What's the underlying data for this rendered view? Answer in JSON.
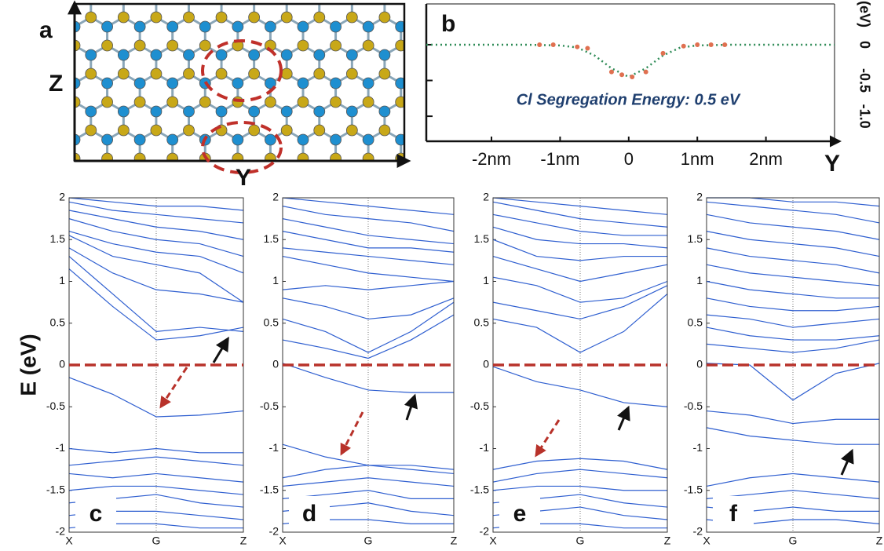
{
  "chart_data": [
    {
      "type": "structure",
      "label": "a",
      "ylabel": "Z",
      "xlabel": "Y"
    },
    {
      "type": "line",
      "label": "b",
      "annotation": "Cl Segregation Energy: 0.5 eV",
      "ylabel": "(eV)",
      "xlabel": "Y",
      "xlim": [
        -2.95,
        3
      ],
      "ylim": [
        -1.35,
        0.57
      ],
      "xticks": [
        {
          "value": -2,
          "label": "-2nm"
        },
        {
          "value": -1,
          "label": "-1nm"
        },
        0,
        {
          "value": 1,
          "label": "1nm"
        },
        {
          "value": 2,
          "label": "2nm"
        }
      ],
      "yticks": [
        0,
        -0.5,
        {
          "value": -1,
          "label": "-1.0"
        }
      ],
      "series": [
        {
          "style": "dotted",
          "color": "#2e8b57",
          "x": [
            -2.95,
            -2.5,
            -2,
            -1.5,
            -1,
            -0.75,
            -0.5,
            -0.25,
            0,
            0.25,
            0.5,
            0.75,
            1,
            1.5,
            2,
            2.5,
            3
          ],
          "values": [
            0,
            0,
            0,
            0,
            -0.01,
            -0.04,
            -0.15,
            -0.33,
            -0.45,
            -0.33,
            -0.15,
            -0.04,
            -0.01,
            0,
            0,
            0,
            0
          ]
        },
        {
          "style": "points",
          "color": "#e07050",
          "x": [
            -1.3,
            -1.1,
            -0.75,
            -0.6,
            -0.25,
            -0.1,
            0.05,
            0.25,
            0.5,
            0.8,
            1.0,
            1.2,
            1.4
          ],
          "values": [
            0,
            0,
            -0.03,
            -0.05,
            -0.38,
            -0.42,
            -0.45,
            -0.38,
            -0.12,
            -0.02,
            0,
            0,
            0
          ]
        }
      ]
    },
    {
      "type": "band",
      "label": "c",
      "ylabel": "E (eV)",
      "color": "#2f5fd0",
      "hline": 0,
      "hline_color": "#b8322a",
      "x": [
        0,
        0.5,
        1,
        1.5,
        2
      ],
      "xlim": [
        0,
        2
      ],
      "ylim": [
        -2,
        2
      ],
      "xticks": [
        {
          "value": 0,
          "label": "X"
        },
        {
          "value": 1,
          "label": "G"
        },
        {
          "value": 2,
          "label": "Z"
        }
      ],
      "yticks": [
        2,
        1.5,
        1,
        0.5,
        0,
        -0.5,
        -1,
        -1.5,
        -2
      ],
      "series": [
        {
          "values": [
            1.15,
            0.7,
            0.3,
            0.35,
            0.45
          ]
        },
        {
          "values": [
            1.3,
            0.85,
            0.4,
            0.45,
            0.4
          ]
        },
        {
          "values": [
            1.4,
            1.1,
            0.9,
            0.85,
            0.75
          ]
        },
        {
          "values": [
            1.55,
            1.3,
            1.2,
            1.1,
            0.75
          ]
        },
        {
          "values": [
            1.6,
            1.45,
            1.35,
            1.3,
            1.1
          ]
        },
        {
          "values": [
            1.75,
            1.6,
            1.5,
            1.45,
            1.3
          ]
        },
        {
          "values": [
            1.85,
            1.75,
            1.65,
            1.6,
            1.5
          ]
        },
        {
          "values": [
            1.95,
            1.85,
            1.8,
            1.75,
            1.7
          ]
        },
        {
          "values": [
            2.0,
            1.95,
            1.9,
            1.9,
            1.85
          ]
        },
        {
          "values": [
            -0.15,
            -0.35,
            -0.62,
            -0.6,
            -0.55
          ]
        },
        {
          "values": [
            -1.0,
            -1.05,
            -1.0,
            -1.05,
            -1.05
          ]
        },
        {
          "values": [
            -1.2,
            -1.15,
            -1.1,
            -1.15,
            -1.2
          ]
        },
        {
          "values": [
            -1.3,
            -1.35,
            -1.3,
            -1.35,
            -1.4
          ]
        },
        {
          "values": [
            -1.5,
            -1.45,
            -1.45,
            -1.5,
            -1.55
          ]
        },
        {
          "values": [
            -1.65,
            -1.6,
            -1.55,
            -1.65,
            -1.7
          ]
        },
        {
          "values": [
            -1.8,
            -1.75,
            -1.75,
            -1.8,
            -1.85
          ]
        },
        {
          "values": [
            -1.95,
            -1.9,
            -1.9,
            -1.95,
            -1.95
          ]
        }
      ]
    },
    {
      "type": "band",
      "label": "d",
      "color": "#2f5fd0",
      "hline": 0,
      "hline_color": "#b8322a",
      "x": [
        0,
        0.5,
        1,
        1.5,
        2
      ],
      "xlim": [
        0,
        2
      ],
      "ylim": [
        -2,
        2
      ],
      "xticks": [
        {
          "value": 0,
          "label": "X"
        },
        {
          "value": 1,
          "label": "G"
        },
        {
          "value": 2,
          "label": "Z"
        }
      ],
      "yticks": [
        2,
        1.5,
        1,
        0.5,
        0,
        -0.5,
        -1,
        -1.5,
        -2
      ],
      "series": [
        {
          "values": [
            0.3,
            0.2,
            0.08,
            0.3,
            0.6
          ]
        },
        {
          "values": [
            0.55,
            0.4,
            0.15,
            0.4,
            0.75
          ]
        },
        {
          "values": [
            0.8,
            0.7,
            0.55,
            0.6,
            0.8
          ]
        },
        {
          "values": [
            0.9,
            0.95,
            0.9,
            0.95,
            1.0
          ]
        },
        {
          "values": [
            1.3,
            1.2,
            1.1,
            1.05,
            1.0
          ]
        },
        {
          "values": [
            1.4,
            1.35,
            1.3,
            1.25,
            1.2
          ]
        },
        {
          "values": [
            1.6,
            1.5,
            1.4,
            1.4,
            1.35
          ]
        },
        {
          "values": [
            1.75,
            1.65,
            1.55,
            1.5,
            1.45
          ]
        },
        {
          "values": [
            1.9,
            1.8,
            1.75,
            1.7,
            1.6
          ]
        },
        {
          "values": [
            2.0,
            1.95,
            1.9,
            1.85,
            1.8
          ]
        },
        {
          "values": [
            0.02,
            -0.15,
            -0.3,
            -0.33,
            -0.33
          ]
        },
        {
          "values": [
            -0.95,
            -1.1,
            -1.2,
            -1.2,
            -1.25
          ]
        },
        {
          "values": [
            -1.35,
            -1.25,
            -1.2,
            -1.25,
            -1.3
          ]
        },
        {
          "values": [
            -1.45,
            -1.4,
            -1.35,
            -1.4,
            -1.45
          ]
        },
        {
          "values": [
            -1.6,
            -1.55,
            -1.5,
            -1.6,
            -1.6
          ]
        },
        {
          "values": [
            -1.75,
            -1.7,
            -1.65,
            -1.75,
            -1.8
          ]
        },
        {
          "values": [
            -1.9,
            -1.85,
            -1.85,
            -1.9,
            -1.9
          ]
        }
      ]
    },
    {
      "type": "band",
      "label": "e",
      "color": "#2f5fd0",
      "hline": 0,
      "hline_color": "#b8322a",
      "x": [
        0,
        0.5,
        1,
        1.5,
        2
      ],
      "xlim": [
        0,
        2
      ],
      "ylim": [
        -2,
        2
      ],
      "xticks": [
        {
          "value": 0,
          "label": "X"
        },
        {
          "value": 1,
          "label": "G"
        },
        {
          "value": 2,
          "label": "Z"
        }
      ],
      "yticks": [
        2,
        1.5,
        1,
        0.5,
        0,
        -0.5,
        -1,
        -1.5,
        -2
      ],
      "series": [
        {
          "values": [
            0.55,
            0.45,
            0.15,
            0.4,
            0.85
          ]
        },
        {
          "values": [
            0.75,
            0.65,
            0.55,
            0.7,
            0.95
          ]
        },
        {
          "values": [
            1.05,
            0.95,
            0.75,
            0.8,
            1.0
          ]
        },
        {
          "values": [
            1.3,
            1.15,
            1.0,
            1.1,
            1.2
          ]
        },
        {
          "values": [
            1.5,
            1.3,
            1.25,
            1.3,
            1.3
          ]
        },
        {
          "values": [
            1.65,
            1.5,
            1.45,
            1.45,
            1.4
          ]
        },
        {
          "values": [
            1.8,
            1.7,
            1.6,
            1.55,
            1.55
          ]
        },
        {
          "values": [
            1.95,
            1.85,
            1.75,
            1.7,
            1.65
          ]
        },
        {
          "values": [
            2.0,
            1.95,
            1.9,
            1.85,
            1.8
          ]
        },
        {
          "values": [
            -0.02,
            -0.2,
            -0.3,
            -0.45,
            -0.5
          ]
        },
        {
          "values": [
            -1.25,
            -1.15,
            -1.12,
            -1.15,
            -1.25
          ]
        },
        {
          "values": [
            -1.4,
            -1.3,
            -1.25,
            -1.3,
            -1.35
          ]
        },
        {
          "values": [
            -1.5,
            -1.45,
            -1.45,
            -1.5,
            -1.5
          ]
        },
        {
          "values": [
            -1.65,
            -1.6,
            -1.55,
            -1.65,
            -1.7
          ]
        },
        {
          "values": [
            -1.8,
            -1.75,
            -1.7,
            -1.8,
            -1.85
          ]
        },
        {
          "values": [
            -1.95,
            -1.9,
            -1.9,
            -1.95,
            -1.95
          ]
        }
      ]
    },
    {
      "type": "band",
      "label": "f",
      "color": "#2f5fd0",
      "hline": 0,
      "hline_color": "#b8322a",
      "x": [
        0,
        0.5,
        1,
        1.5,
        2
      ],
      "xlim": [
        0,
        2
      ],
      "ylim": [
        -2,
        2
      ],
      "xticks": [
        {
          "value": 0,
          "label": "X"
        },
        {
          "value": 1,
          "label": "G"
        },
        {
          "value": 2,
          "label": "Z"
        }
      ],
      "yticks": [
        2,
        1.5,
        1,
        0.5,
        0,
        -0.5,
        -1,
        -1.5,
        -2
      ],
      "series": [
        {
          "values": [
            0.25,
            0.2,
            0.15,
            0.2,
            0.3
          ]
        },
        {
          "values": [
            0.45,
            0.35,
            0.3,
            0.3,
            0.35
          ]
        },
        {
          "values": [
            0.6,
            0.55,
            0.45,
            0.5,
            0.55
          ]
        },
        {
          "values": [
            0.8,
            0.7,
            0.65,
            0.65,
            0.7
          ]
        },
        {
          "values": [
            1.0,
            0.9,
            0.85,
            0.8,
            0.8
          ]
        },
        {
          "values": [
            1.2,
            1.1,
            1.05,
            1.0,
            0.95
          ]
        },
        {
          "values": [
            1.4,
            1.3,
            1.25,
            1.2,
            1.1
          ]
        },
        {
          "values": [
            1.6,
            1.5,
            1.45,
            1.4,
            1.3
          ]
        },
        {
          "values": [
            1.8,
            1.7,
            1.65,
            1.6,
            1.5
          ]
        },
        {
          "values": [
            1.95,
            1.9,
            1.85,
            1.8,
            1.7
          ]
        },
        {
          "values": [
            2.0,
            2.0,
            1.95,
            1.95,
            1.9
          ]
        },
        {
          "values": [
            0.02,
            0.0,
            -0.42,
            -0.1,
            0.02
          ]
        },
        {
          "values": [
            -0.55,
            -0.6,
            -0.7,
            -0.65,
            -0.65
          ]
        },
        {
          "values": [
            -0.75,
            -0.85,
            -0.9,
            -0.95,
            -0.95
          ]
        },
        {
          "values": [
            -1.45,
            -1.35,
            -1.3,
            -1.35,
            -1.4
          ]
        },
        {
          "values": [
            -1.6,
            -1.55,
            -1.5,
            -1.55,
            -1.6
          ]
        },
        {
          "values": [
            -1.7,
            -1.75,
            -1.7,
            -1.75,
            -1.75
          ]
        },
        {
          "values": [
            -1.85,
            -1.9,
            -1.85,
            -1.85,
            -1.9
          ]
        }
      ]
    }
  ]
}
